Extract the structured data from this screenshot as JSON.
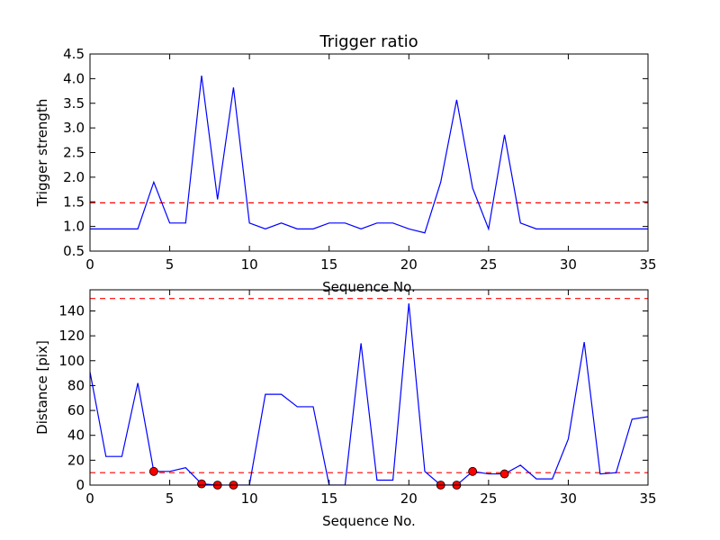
{
  "chart_data": [
    {
      "type": "line",
      "title": "Trigger ratio",
      "xlabel": "Sequence No.",
      "ylabel": "Trigger strength",
      "xlim": [
        0,
        35
      ],
      "ylim": [
        0.5,
        4.5
      ],
      "xticks": [
        0,
        5,
        10,
        15,
        20,
        25,
        30,
        35
      ],
      "yticks": [
        0.5,
        1.0,
        1.5,
        2.0,
        2.5,
        3.0,
        3.5,
        4.0,
        4.5
      ],
      "ytick_labels": [
        "0.5",
        "1.0",
        "1.5",
        "2.0",
        "2.5",
        "3.0",
        "3.5",
        "4.0",
        "4.5"
      ],
      "grid": false,
      "series": [
        {
          "color": "#0000ff",
          "x": [
            0,
            1,
            2,
            3,
            4,
            5,
            6,
            7,
            8,
            9,
            10,
            11,
            12,
            13,
            14,
            15,
            16,
            17,
            18,
            19,
            20,
            21,
            22,
            23,
            24,
            25,
            26,
            27,
            28,
            29,
            30,
            31,
            32,
            33,
            34,
            35
          ],
          "values": [
            0.95,
            0.95,
            0.95,
            0.95,
            1.9,
            1.07,
            1.07,
            4.06,
            1.55,
            3.82,
            1.07,
            0.95,
            1.07,
            0.95,
            0.95,
            1.07,
            1.07,
            0.95,
            1.07,
            1.07,
            0.95,
            0.87,
            1.9,
            3.57,
            1.78,
            0.95,
            2.86,
            1.07,
            0.95,
            0.95,
            0.95,
            0.95,
            0.95,
            0.95,
            0.95,
            0.95
          ]
        }
      ],
      "reference_lines": [
        {
          "y": 1.48,
          "color": "#ff0000",
          "style": "dashed"
        }
      ]
    },
    {
      "type": "line",
      "title": "",
      "xlabel": "Sequence No.",
      "ylabel": "Distance [pix]",
      "xlim": [
        0,
        35
      ],
      "ylim": [
        0,
        157
      ],
      "xticks": [
        0,
        5,
        10,
        15,
        20,
        25,
        30,
        35
      ],
      "yticks": [
        0,
        20,
        40,
        60,
        80,
        100,
        120,
        140
      ],
      "ytick_labels": [
        "0",
        "20",
        "40",
        "60",
        "80",
        "100",
        "120",
        "140"
      ],
      "grid": false,
      "series": [
        {
          "color": "#0000ff",
          "x": [
            0,
            1,
            2,
            3,
            4,
            5,
            6,
            7,
            8,
            9,
            10,
            11,
            12,
            13,
            14,
            15,
            16,
            17,
            18,
            19,
            20,
            21,
            22,
            23,
            24,
            25,
            26,
            27,
            28,
            29,
            30,
            31,
            32,
            33,
            34,
            35
          ],
          "values": [
            91,
            23,
            23,
            82,
            11,
            11,
            14,
            1,
            0,
            0,
            0,
            73,
            73,
            63,
            63,
            0,
            0,
            114,
            4,
            4,
            146,
            11,
            0,
            0,
            11,
            9,
            9,
            16,
            5,
            5,
            37,
            115,
            9,
            10,
            53,
            55
          ]
        }
      ],
      "markers": {
        "color": "#ff0000",
        "x": [
          4,
          7,
          8,
          9,
          22,
          23,
          24,
          26
        ],
        "values": [
          11,
          1,
          0,
          0,
          0,
          0,
          11,
          9
        ]
      },
      "reference_lines": [
        {
          "y": 150,
          "color": "#ff0000",
          "style": "dashed"
        },
        {
          "y": 10,
          "color": "#ff0000",
          "style": "dashed"
        }
      ]
    }
  ]
}
